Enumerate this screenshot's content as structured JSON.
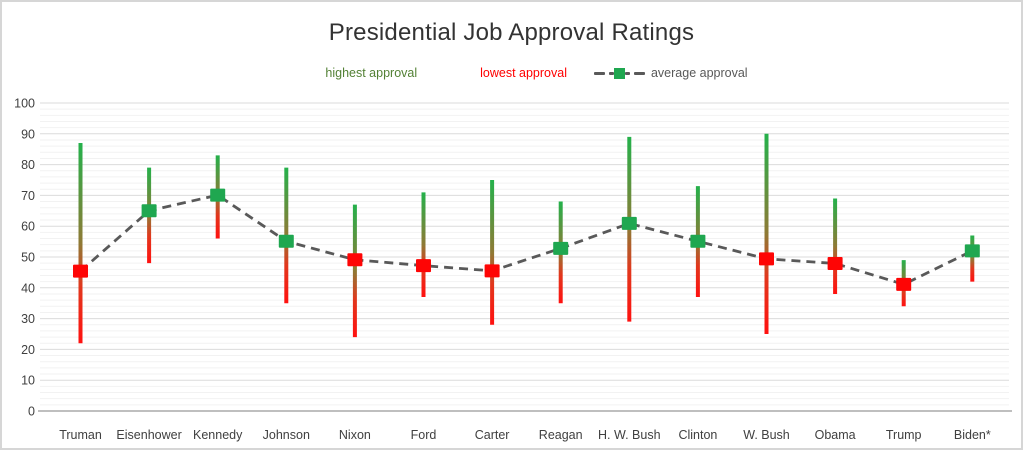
{
  "chart": {
    "title": "Presidential Job Approval Ratings"
  },
  "legend": {
    "items": [
      {
        "label": "highest approval",
        "color": "#538135"
      },
      {
        "label": "lowest approval",
        "color": "#ff0000"
      },
      {
        "label": "average approval",
        "color": "#595959"
      }
    ]
  },
  "chart_data": {
    "type": "range-bar",
    "title": "Presidential Job Approval Ratings",
    "categories": [
      "Truman",
      "Eisenhower",
      "Kennedy",
      "Johnson",
      "Nixon",
      "Ford",
      "Carter",
      "Reagan",
      "H. W. Bush",
      "Clinton",
      "W. Bush",
      "Obama",
      "Trump",
      "Biden*"
    ],
    "series": [
      {
        "name": "highest approval",
        "values": [
          87,
          79,
          83,
          79,
          67,
          71,
          75,
          68,
          89,
          73,
          90,
          69,
          49,
          57
        ]
      },
      {
        "name": "lowest approval",
        "values": [
          22,
          48,
          56,
          35,
          24,
          37,
          28,
          35,
          29,
          37,
          25,
          38,
          34,
          42
        ]
      },
      {
        "name": "average approval",
        "values": [
          45.4,
          65.0,
          70.1,
          55.1,
          49.1,
          47.2,
          45.5,
          52.8,
          60.9,
          55.1,
          49.4,
          47.9,
          41.1,
          52.0
        ]
      }
    ],
    "ylim": [
      0,
      100
    ],
    "yticks": [
      0,
      10,
      20,
      30,
      40,
      50,
      60,
      70,
      80,
      90,
      100
    ],
    "grid": {
      "major_step": 10,
      "minor_step": 2,
      "visible": true
    },
    "legend_position": "top",
    "xlabel": "",
    "ylabel": "",
    "average_marker_rule": {
      "green_if_at_least": 50
    }
  },
  "colors": {
    "title_text": "#333333",
    "axis_text": "#404040",
    "bar_gradient": [
      "#24b14b",
      "#8f7a35",
      "#e2371d",
      "#ff1110"
    ],
    "average_line": "#595959",
    "marker_green": "#1fa750",
    "marker_red": "#fe0505",
    "grid_major": "#dbdbdb",
    "grid_minor": "#f2f2f2",
    "axis_line": "#bfbfbf"
  }
}
